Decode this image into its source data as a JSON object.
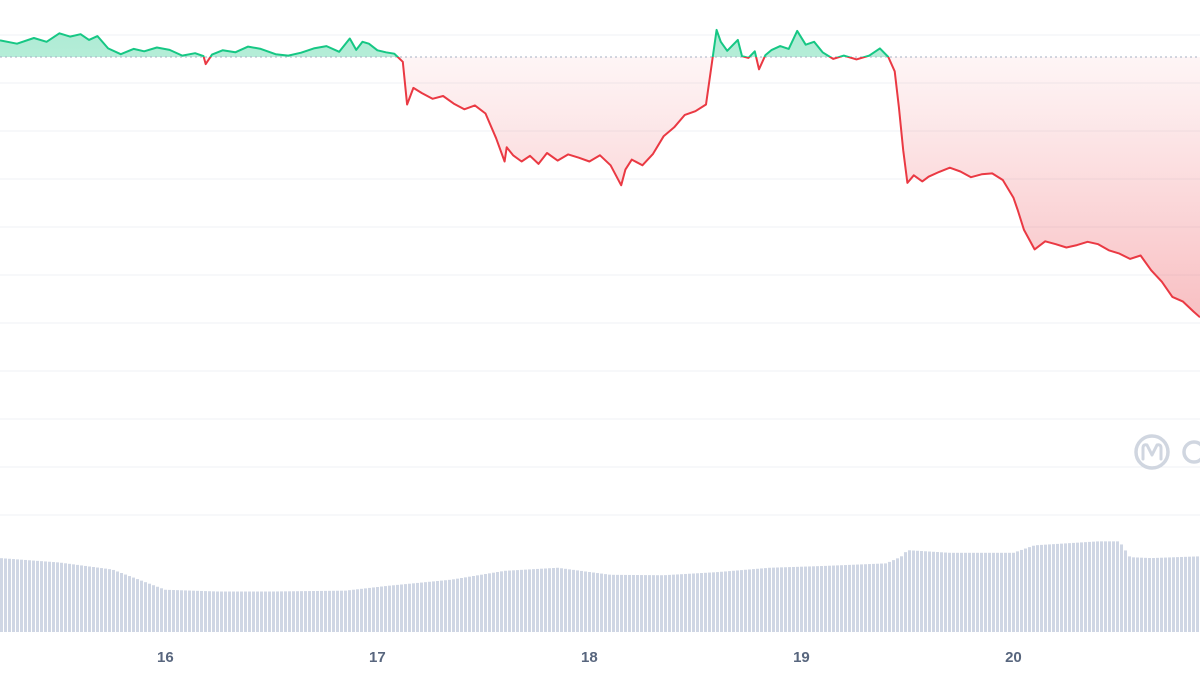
{
  "chart_data": {
    "type": "line",
    "title": "",
    "xlabel": "",
    "ylabel": "",
    "x_tick_labels": [
      "16",
      "17",
      "18",
      "19",
      "20"
    ],
    "x_tick_values": [
      16,
      17,
      18,
      19,
      20
    ],
    "xlim": [
      15.22,
      20.88
    ],
    "ylim": [
      0,
      100
    ],
    "baseline": 88,
    "grid": true,
    "legend": "none",
    "colors": {
      "up": "#16c784",
      "down": "#ea3943",
      "volume": "#cfd6e4",
      "grid": "#eff2f5",
      "baseline": "#a6b0c3",
      "watermark": "#d0d6e0"
    },
    "series": [
      {
        "x": [
          15.22,
          15.3,
          15.38,
          15.44,
          15.5,
          15.55,
          15.6,
          15.64,
          15.68,
          15.73,
          15.79,
          15.85,
          15.9,
          15.96,
          16.02,
          16.08,
          16.14,
          16.18,
          16.19,
          16.22,
          16.27,
          16.33,
          16.39,
          16.45,
          16.52,
          16.58,
          16.64,
          16.7,
          16.76,
          16.82,
          16.87,
          16.9,
          16.93,
          16.96,
          17.0,
          17.04,
          17.08,
          17.12,
          17.14,
          17.17,
          17.21,
          17.26,
          17.31,
          17.36,
          17.41,
          17.46,
          17.51,
          17.56,
          17.6,
          17.61,
          17.64,
          17.68,
          17.72,
          17.76,
          17.8,
          17.85,
          17.9,
          17.95,
          18.0,
          18.05,
          18.1,
          18.15,
          18.17,
          18.2,
          18.25,
          18.3,
          18.35,
          18.4,
          18.45,
          18.5,
          18.55,
          18.6,
          18.62,
          18.65,
          18.7,
          18.72,
          18.75,
          18.78,
          18.8,
          18.83,
          18.86,
          18.9,
          18.94,
          18.98,
          19.02,
          19.06,
          19.1,
          19.15,
          19.2,
          19.26,
          19.32,
          19.37,
          19.41,
          19.44,
          19.46,
          19.48,
          19.5,
          19.53,
          19.57,
          19.6,
          19.65,
          19.7,
          19.75,
          19.8,
          19.85,
          19.9,
          19.95,
          20.0,
          20.02,
          20.05,
          20.1,
          20.15,
          20.2,
          20.25,
          20.3,
          20.35,
          20.4,
          20.45,
          20.5,
          20.55,
          20.6,
          20.65,
          20.7,
          20.75,
          20.8,
          20.85,
          20.88
        ],
        "y": [
          91.5,
          90.8,
          92,
          91.2,
          93,
          92.3,
          92.8,
          91.6,
          92.4,
          89.8,
          88.6,
          89.7,
          89.2,
          90,
          89.5,
          88.3,
          88.8,
          88.2,
          86.5,
          88.5,
          89.4,
          89,
          90.2,
          89.7,
          88.6,
          88.3,
          88.9,
          89.8,
          90.3,
          89.1,
          91.9,
          89.5,
          91.2,
          90.8,
          89.4,
          89,
          88.7,
          87,
          78,
          81.5,
          80.4,
          79.2,
          79.8,
          78.2,
          77,
          77.8,
          76.1,
          70.9,
          66,
          69,
          67.3,
          66,
          67.2,
          65.5,
          67.8,
          66.2,
          67.5,
          66.8,
          66,
          67.3,
          65.2,
          61,
          64.3,
          66.4,
          65.2,
          67.6,
          71.3,
          73.2,
          75.8,
          76.6,
          78,
          93.7,
          91.2,
          89.3,
          91.6,
          88.2,
          87.8,
          89.2,
          85.4,
          88.4,
          89.5,
          90.3,
          89.7,
          93.5,
          90.6,
          91.2,
          89,
          87.6,
          88.3,
          87.5,
          88.3,
          89.8,
          88,
          85,
          77.4,
          68.4,
          61.5,
          63.1,
          61.8,
          62.8,
          63.8,
          64.7,
          63.9,
          62.7,
          63.3,
          63.5,
          62.1,
          58.4,
          55.8,
          51.6,
          47.5,
          49.2,
          48.6,
          47.9,
          48.4,
          49.1,
          48.6,
          47.3,
          46.6,
          45.5,
          46.2,
          43.1,
          40.7,
          37.5,
          36.5,
          34.4,
          33.2
        ]
      }
    ],
    "volume": {
      "x": [
        15.22,
        15.5,
        15.75,
        16.0,
        16.25,
        16.5,
        16.85,
        17.05,
        17.35,
        17.6,
        17.85,
        18.1,
        18.35,
        18.6,
        18.85,
        19.1,
        19.4,
        19.47,
        19.5,
        19.7,
        20.0,
        20.1,
        20.4,
        20.5,
        20.55,
        20.65,
        20.88
      ],
      "y": [
        16.8,
        15.8,
        14.2,
        9.6,
        9.2,
        9.2,
        9.4,
        10.5,
        11.9,
        13.9,
        14.6,
        13,
        12.9,
        13.6,
        14.6,
        15,
        15.6,
        17.1,
        18.6,
        18,
        18,
        19.7,
        20.6,
        20.6,
        17,
        16.8,
        17.2
      ]
    }
  },
  "watermark": {
    "icon": "coinmarketcap-logo-icon"
  }
}
